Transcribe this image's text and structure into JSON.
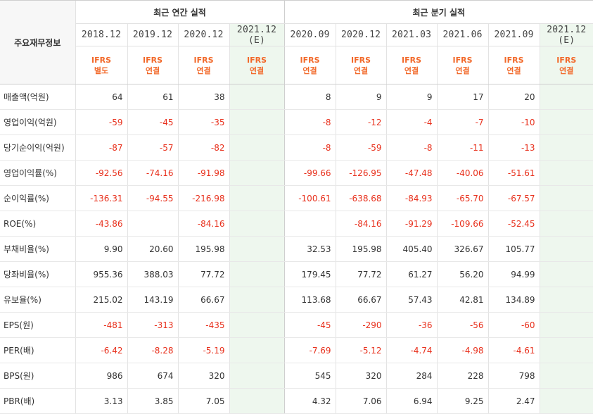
{
  "corner_label": "주요재무정보",
  "groups": {
    "annual": "최근 연간 실적",
    "quarterly": "최근 분기 실적"
  },
  "periods": [
    {
      "label": "2018.12",
      "est": "",
      "ifrs": "IFRS",
      "basis": "별도"
    },
    {
      "label": "2019.12",
      "est": "",
      "ifrs": "IFRS",
      "basis": "연결"
    },
    {
      "label": "2020.12",
      "est": "",
      "ifrs": "IFRS",
      "basis": "연결"
    },
    {
      "label": "2021.12",
      "est": "(E)",
      "ifrs": "IFRS",
      "basis": "연결"
    },
    {
      "label": "2020.09",
      "est": "",
      "ifrs": "IFRS",
      "basis": "연결"
    },
    {
      "label": "2020.12",
      "est": "",
      "ifrs": "IFRS",
      "basis": "연결"
    },
    {
      "label": "2021.03",
      "est": "",
      "ifrs": "IFRS",
      "basis": "연결"
    },
    {
      "label": "2021.06",
      "est": "",
      "ifrs": "IFRS",
      "basis": "연결"
    },
    {
      "label": "2021.09",
      "est": "",
      "ifrs": "IFRS",
      "basis": "연결"
    },
    {
      "label": "2021.12",
      "est": "(E)",
      "ifrs": "IFRS",
      "basis": "연결"
    }
  ],
  "rows": [
    {
      "label": "매출액(억원)",
      "values": [
        "64",
        "61",
        "38",
        "",
        "8",
        "9",
        "9",
        "17",
        "20",
        ""
      ]
    },
    {
      "label": "영업이익(억원)",
      "values": [
        "-59",
        "-45",
        "-35",
        "",
        "-8",
        "-12",
        "-4",
        "-7",
        "-10",
        ""
      ]
    },
    {
      "label": "당기순이익(억원)",
      "values": [
        "-87",
        "-57",
        "-82",
        "",
        "-8",
        "-59",
        "-8",
        "-11",
        "-13",
        ""
      ]
    },
    {
      "label": "영업이익률(%)",
      "values": [
        "-92.56",
        "-74.16",
        "-91.98",
        "",
        "-99.66",
        "-126.95",
        "-47.48",
        "-40.06",
        "-51.61",
        ""
      ]
    },
    {
      "label": "순이익률(%)",
      "values": [
        "-136.31",
        "-94.55",
        "-216.98",
        "",
        "-100.61",
        "-638.68",
        "-84.93",
        "-65.70",
        "-67.57",
        ""
      ]
    },
    {
      "label": "ROE(%)",
      "values": [
        "-43.86",
        "",
        "-84.16",
        "",
        "",
        "-84.16",
        "-91.29",
        "-109.66",
        "-52.45",
        ""
      ]
    },
    {
      "label": "부채비율(%)",
      "values": [
        "9.90",
        "20.60",
        "195.98",
        "",
        "32.53",
        "195.98",
        "405.40",
        "326.67",
        "105.77",
        ""
      ]
    },
    {
      "label": "당좌비율(%)",
      "values": [
        "955.36",
        "388.03",
        "77.72",
        "",
        "179.45",
        "77.72",
        "61.27",
        "56.20",
        "94.99",
        ""
      ]
    },
    {
      "label": "유보율(%)",
      "values": [
        "215.02",
        "143.19",
        "66.67",
        "",
        "113.68",
        "66.67",
        "57.43",
        "42.81",
        "134.89",
        ""
      ]
    },
    {
      "label": "EPS(원)",
      "values": [
        "-481",
        "-313",
        "-435",
        "",
        "-45",
        "-290",
        "-36",
        "-56",
        "-60",
        ""
      ]
    },
    {
      "label": "PER(배)",
      "values": [
        "-6.42",
        "-8.28",
        "-5.19",
        "",
        "-7.69",
        "-5.12",
        "-4.74",
        "-4.98",
        "-4.61",
        ""
      ]
    },
    {
      "label": "BPS(원)",
      "values": [
        "986",
        "674",
        "320",
        "",
        "545",
        "320",
        "284",
        "228",
        "798",
        ""
      ]
    },
    {
      "label": "PBR(배)",
      "values": [
        "3.13",
        "3.85",
        "7.05",
        "",
        "4.32",
        "7.06",
        "6.94",
        "9.25",
        "2.47",
        ""
      ]
    }
  ],
  "colors": {
    "negative": "#e8301c",
    "ifrs_label": "#f2692a",
    "estimate_bg": "#eef7ee",
    "header_bg": "#f7f7f7"
  }
}
